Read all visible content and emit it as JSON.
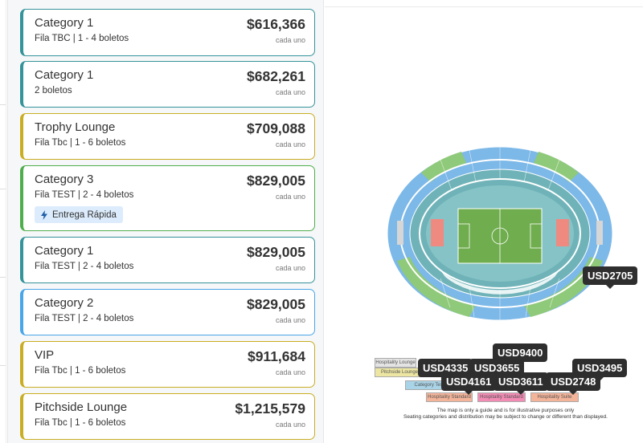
{
  "listings": [
    {
      "name": "Category 1",
      "sub": "Fila TBC | 1 - 4 boletos",
      "price": "$616,366",
      "each": "cada uno",
      "accent": "#35939a"
    },
    {
      "name": "Category 1",
      "sub": "2 boletos",
      "price": "$682,261",
      "each": "cada uno",
      "accent": "#35939a"
    },
    {
      "name": "Trophy Lounge",
      "sub": "Fila Tbc | 1 - 6 boletos",
      "price": "$709,088",
      "each": "cada uno",
      "accent": "#c9ad22"
    },
    {
      "name": "Category 3",
      "sub": "Fila TEST | 2 - 4 boletos",
      "price": "$829,005",
      "each": "cada uno",
      "accent": "#4fae4c",
      "badge": "Entrega Rápida",
      "badge_icon": "lightning-icon"
    },
    {
      "name": "Category 1",
      "sub": "Fila TEST | 2 - 4 boletos",
      "price": "$829,005",
      "each": "cada uno",
      "accent": "#35939a"
    },
    {
      "name": "Category 2",
      "sub": "Fila TEST | 2 - 4 boletos",
      "price": "$829,005",
      "each": "cada uno",
      "accent": "#49a6e8"
    },
    {
      "name": "VIP",
      "sub": "Fila Tbc | 1 - 6 boletos",
      "price": "$911,684",
      "each": "cada uno",
      "accent": "#c9ad22"
    },
    {
      "name": "Pitchside Lounge",
      "sub": "Fila Tbc | 1 - 6 boletos",
      "price": "$1,215,579",
      "each": "cada uno",
      "accent": "#c9ad22"
    }
  ],
  "map": {
    "pins": [
      {
        "label": "USD2705"
      },
      {
        "label": "USD9400"
      },
      {
        "label": "USD4335"
      },
      {
        "label": "USD3655"
      },
      {
        "label": "USD3495"
      },
      {
        "label": "USD4161"
      },
      {
        "label": "USD3611"
      },
      {
        "label": "USD2748"
      }
    ],
    "legend": [
      "Hospitality Lounge",
      "Pitchside Lounge",
      "Category Text",
      "Hospitality Standard",
      "Hospitality Standard",
      "Hospitality Suite"
    ],
    "note_line1": "The map is only a guide and is for illustrative purposes only",
    "note_line2": "Seating categories and distribution may be subject to change or different than displayed."
  },
  "colors": {
    "teal": "#35939a",
    "gold": "#c9ad22",
    "green": "#4fae4c",
    "blue": "#49a6e8",
    "pitch": "#6fad4e",
    "pin_bg": "#2e2e2e",
    "badge_bg": "#dcecfc"
  }
}
